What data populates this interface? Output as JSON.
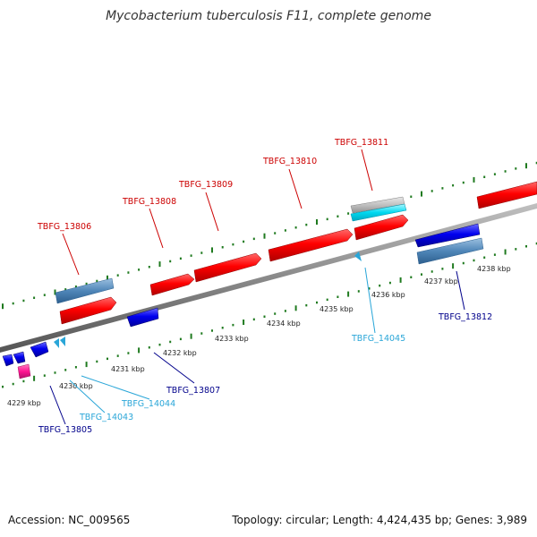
{
  "title": "Mycobacterium tuberculosis F11, complete genome",
  "footer": {
    "accession": "Accession: NC_009565",
    "stats": "Topology: circular; Length: 4,424,435 bp; Genes: 3,989"
  },
  "colors": {
    "backbone": "#8a8a8a",
    "tick": "#1f7a1f",
    "forward_label": "#cc0000",
    "reverse_label": "#00008b",
    "rna_label": "#2aa6d8",
    "cds_forward": "#ff0000",
    "cds_reverse": "#0000ee",
    "gene_feature": "#4f86b8",
    "rna": "#00d8f0",
    "pseudo": "#ff1493",
    "misc": "#c0c0c0"
  },
  "kbp_labels": [
    "4229 kbp",
    "4230 kbp",
    "4231 kbp",
    "4232 kbp",
    "4233 kbp",
    "4234 kbp",
    "4235 kbp",
    "4236 kbp",
    "4237 kbp",
    "4238 kbp"
  ],
  "genes": [
    {
      "id": "TBFG_13805",
      "strand": "reverse"
    },
    {
      "id": "TBFG_13806",
      "strand": "forward"
    },
    {
      "id": "TBFG_13807",
      "strand": "reverse"
    },
    {
      "id": "TBFG_13808",
      "strand": "forward"
    },
    {
      "id": "TBFG_13809",
      "strand": "forward"
    },
    {
      "id": "TBFG_13810",
      "strand": "forward"
    },
    {
      "id": "TBFG_13811",
      "strand": "forward"
    },
    {
      "id": "TBFG_13812",
      "strand": "reverse"
    },
    {
      "id": "TBFG_14043",
      "strand": "rna"
    },
    {
      "id": "TBFG_14044",
      "strand": "rna"
    },
    {
      "id": "TBFG_14045",
      "strand": "rna"
    }
  ]
}
